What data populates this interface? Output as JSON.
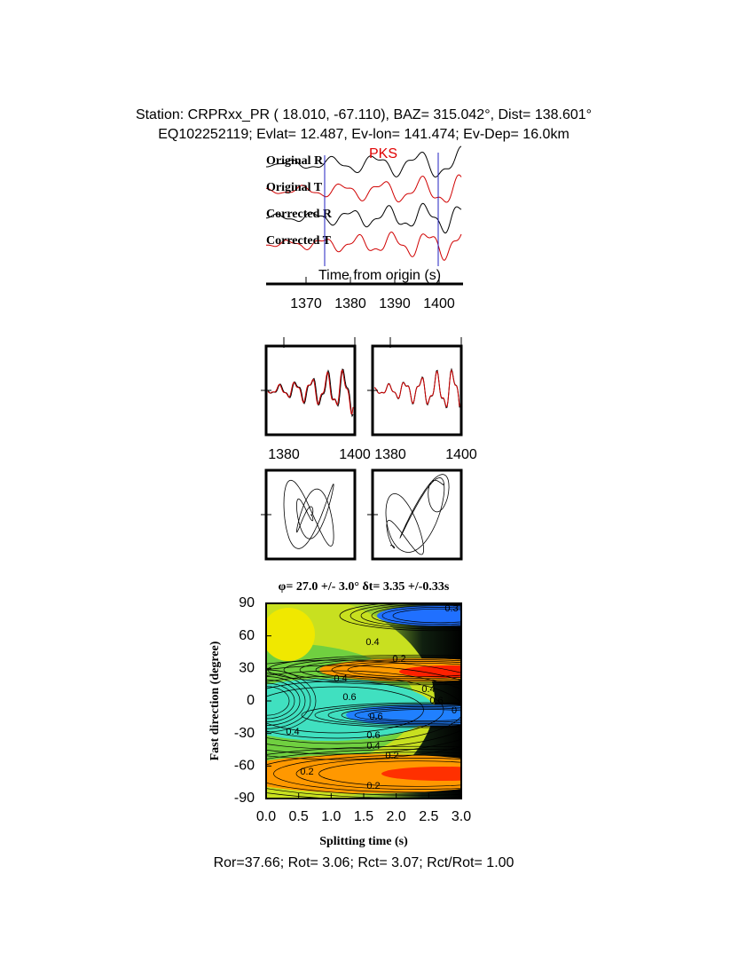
{
  "header": {
    "line1": "Station: CRPRxx_PR (  18.010,  -67.110), BAZ=  315.042°, Dist=  138.601°",
    "line2": "EQ102252119; Evlat=  12.487, Ev-lon= 141.474; Ev-Dep= 16.0km"
  },
  "waveforms": {
    "traces": [
      "Original R",
      "Original T",
      "Corrected R",
      "Corrected T"
    ],
    "phase": "PKS",
    "xlabel": "Time from origin (s)",
    "xlim": [
      1361,
      1405
    ],
    "xticks": [
      1370,
      1380,
      1390,
      1400
    ]
  },
  "comparison": {
    "xlim": [
      1375,
      1400
    ],
    "xticks": [
      1380,
      1400
    ]
  },
  "grid_search": {
    "title": "φ= 27.0 +/- 3.0° δt= 3.35 +/-0.33s",
    "xlabel": "Splitting time (s)",
    "ylabel": "Fast direction (degree)",
    "xlim": [
      0,
      3
    ],
    "ylim": [
      -90,
      90
    ],
    "xticks": [
      {
        "value": 0,
        "label": "0.0"
      },
      0.5,
      {
        "value": 1,
        "label": "1.0"
      },
      1.5,
      {
        "value": 2,
        "label": "2.0"
      },
      2.5,
      {
        "value": 3,
        "label": "3.0"
      }
    ],
    "yticks": [
      90,
      60,
      30,
      0,
      -30,
      -60,
      -90
    ],
    "contour_labels": [
      "0.3",
      "0.4",
      "0.2",
      "0.4",
      "0.6",
      "0.4",
      "0.6",
      "0",
      "0.6",
      "0.6",
      "0.4",
      "0.2",
      "0.2",
      "0.4",
      "0.2"
    ]
  },
  "footer": "Ror=37.66; Rot= 3.06; Rct= 3.07; Rct/Rot= 1.00"
}
